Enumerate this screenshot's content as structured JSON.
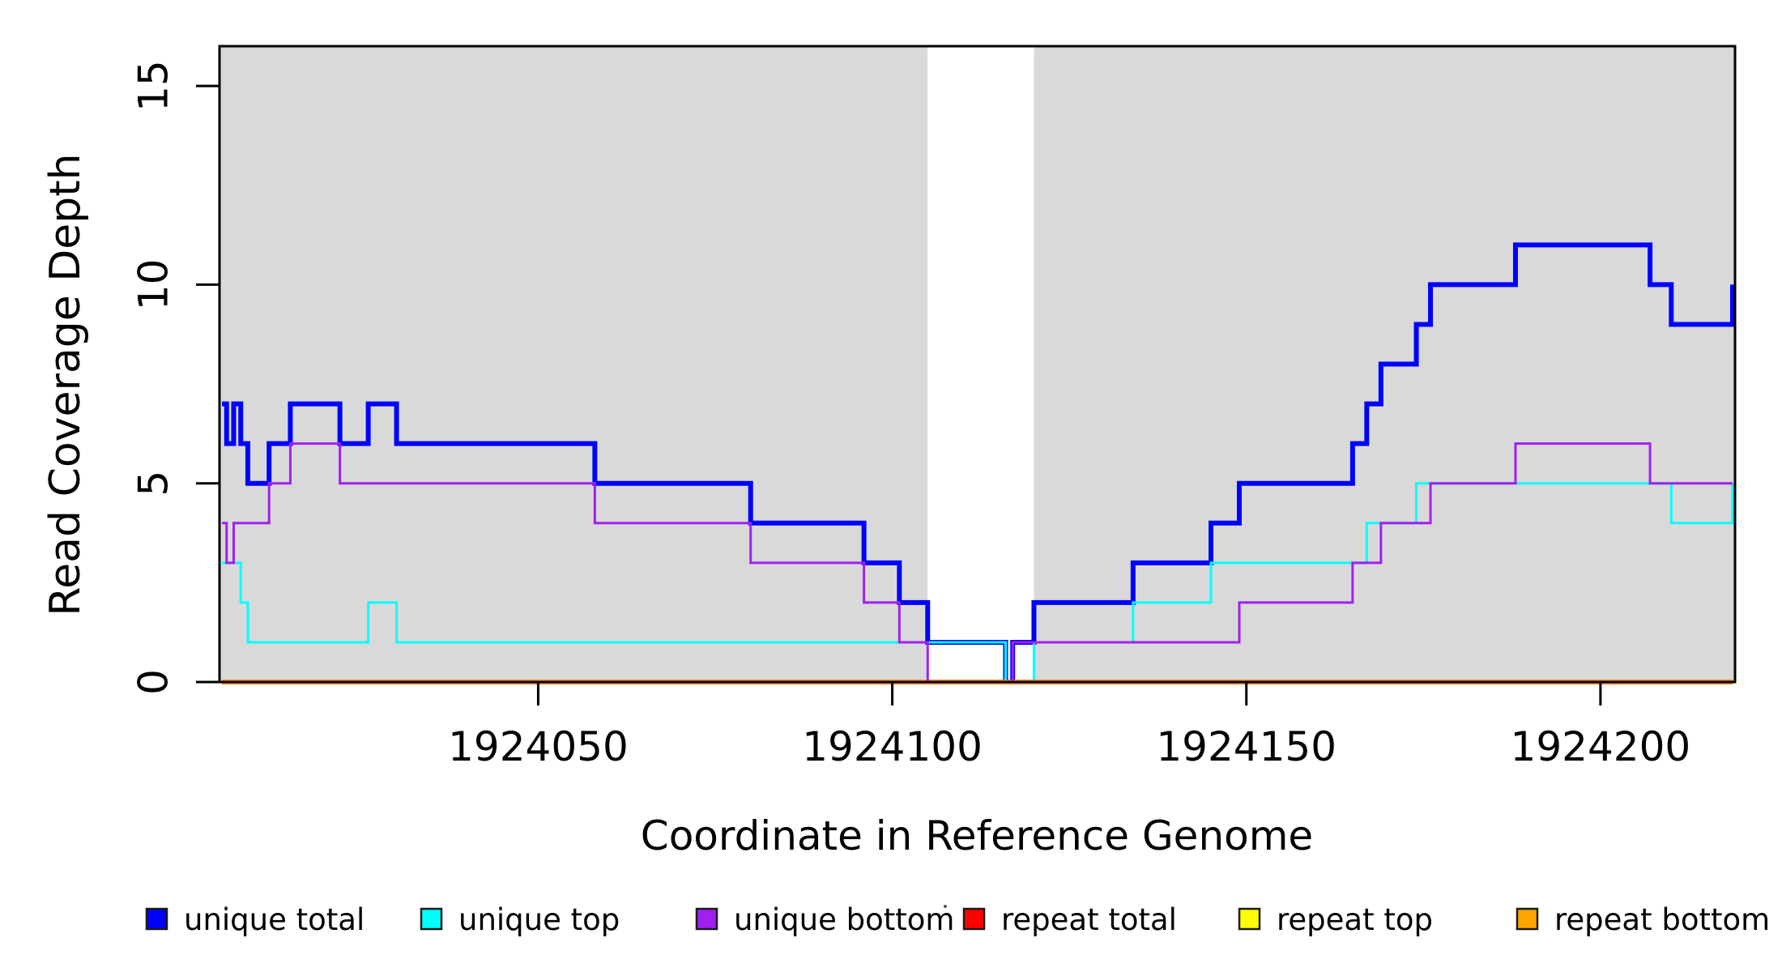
{
  "chart_data": {
    "type": "line",
    "subtype": "step-coverage",
    "title": "",
    "xlabel": "Coordinate in Reference Genome",
    "ylabel": "Read Coverage Depth",
    "xlim": [
      1924005,
      1924219
    ],
    "ylim": [
      0,
      16
    ],
    "x_ticks": [
      {
        "value": 1924050,
        "label": "1924050"
      },
      {
        "value": 1924100,
        "label": "1924100"
      },
      {
        "value": 1924150,
        "label": "1924150"
      },
      {
        "value": 1924200,
        "label": "1924200"
      }
    ],
    "y_ticks": [
      {
        "value": 0,
        "label": "0"
      },
      {
        "value": 5,
        "label": "5"
      },
      {
        "value": 10,
        "label": "10"
      },
      {
        "value": 15,
        "label": "15"
      }
    ],
    "grid": false,
    "plot_background_color": "#D9D9D9",
    "shaded_regions": [
      {
        "from": 1924005,
        "to": 1924105,
        "color": "#D9D9D9"
      },
      {
        "from": 1924120,
        "to": 1924219,
        "color": "#D9D9D9"
      }
    ],
    "unshaded_gap": {
      "from": 1924105,
      "to": 1924120,
      "color": "#FFFFFF"
    },
    "series": [
      {
        "name": "unique total",
        "color": "#0000FF",
        "width": 6,
        "points": [
          [
            1924005,
            7
          ],
          [
            1924006,
            6
          ],
          [
            1924007,
            7
          ],
          [
            1924008,
            6
          ],
          [
            1924009,
            5
          ],
          [
            1924012,
            6
          ],
          [
            1924015,
            7
          ],
          [
            1924022,
            6
          ],
          [
            1924026,
            7
          ],
          [
            1924030,
            6
          ],
          [
            1924058,
            5
          ],
          [
            1924080,
            4
          ],
          [
            1924096,
            3
          ],
          [
            1924101,
            2
          ],
          [
            1924105,
            1
          ],
          [
            1924116,
            0
          ],
          [
            1924117,
            1
          ],
          [
            1924120,
            2
          ],
          [
            1924134,
            3
          ],
          [
            1924145,
            4
          ],
          [
            1924149,
            5
          ],
          [
            1924165,
            6
          ],
          [
            1924167,
            7
          ],
          [
            1924169,
            8
          ],
          [
            1924174,
            9
          ],
          [
            1924176,
            10
          ],
          [
            1924188,
            11
          ],
          [
            1924207,
            10
          ],
          [
            1924210,
            9
          ],
          [
            1924219,
            10
          ]
        ]
      },
      {
        "name": "unique top",
        "color": "#00FFFF",
        "width": 3,
        "points": [
          [
            1924005,
            3
          ],
          [
            1924008,
            2
          ],
          [
            1924009,
            1
          ],
          [
            1924026,
            2
          ],
          [
            1924030,
            1
          ],
          [
            1924116,
            0
          ],
          [
            1924120,
            1
          ],
          [
            1924134,
            2
          ],
          [
            1924145,
            3
          ],
          [
            1924167,
            4
          ],
          [
            1924174,
            5
          ],
          [
            1924210,
            4
          ],
          [
            1924219,
            5
          ]
        ]
      },
      {
        "name": "unique bottom",
        "color": "#A020F0",
        "width": 3,
        "points": [
          [
            1924005,
            4
          ],
          [
            1924006,
            3
          ],
          [
            1924007,
            4
          ],
          [
            1924012,
            5
          ],
          [
            1924015,
            6
          ],
          [
            1924022,
            5
          ],
          [
            1924058,
            4
          ],
          [
            1924080,
            3
          ],
          [
            1924096,
            2
          ],
          [
            1924101,
            1
          ],
          [
            1924105,
            0
          ],
          [
            1924117,
            1
          ],
          [
            1924149,
            2
          ],
          [
            1924165,
            3
          ],
          [
            1924169,
            4
          ],
          [
            1924176,
            5
          ],
          [
            1924188,
            6
          ],
          [
            1924207,
            5
          ]
        ]
      },
      {
        "name": "repeat total",
        "color": "#FF0000",
        "width": 6,
        "points": [
          [
            1924005,
            0
          ]
        ]
      },
      {
        "name": "repeat top",
        "color": "#FFFF00",
        "width": 5,
        "points": [
          [
            1924005,
            0
          ]
        ]
      },
      {
        "name": "repeat bottom",
        "color": "#FFA500",
        "width": 4,
        "points": [
          [
            1924005,
            0
          ]
        ]
      }
    ],
    "draw_order": [
      "unique total",
      "unique top",
      "repeat total",
      "repeat top",
      "repeat bottom",
      "unique bottom"
    ],
    "legend": {
      "position": "bottom",
      "items": [
        {
          "label": "unique total",
          "color": "#0000FF"
        },
        {
          "label": "unique top",
          "color": "#00FFFF"
        },
        {
          "label": "unique bottom",
          "color": "#A020F0"
        },
        {
          "label": "repeat total",
          "color": "#FF0000"
        },
        {
          "label": "repeat top",
          "color": "#FFFF00"
        },
        {
          "label": "repeat bottom",
          "color": "#FFA500"
        }
      ]
    },
    "decorations": {
      "stray_dot": {
        "x": 1167,
        "y": 1119,
        "radius": 2,
        "color": "#555555"
      }
    }
  }
}
